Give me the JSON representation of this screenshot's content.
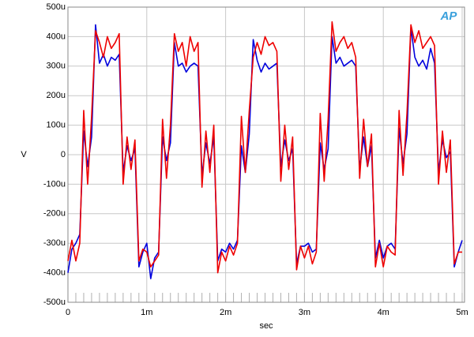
{
  "chart_data": {
    "type": "line",
    "logo": "AP",
    "x_label": "sec",
    "y_label": "V",
    "x": [
      0,
      5e-05,
      0.0001,
      0.00015,
      0.0002,
      0.00025,
      0.0003,
      0.00035,
      0.0004,
      0.00045,
      0.0005,
      0.00055,
      0.0006,
      0.00065,
      0.0007,
      0.00075,
      0.0008,
      0.00085,
      0.0009,
      0.00095,
      0.001,
      0.00105,
      0.0011,
      0.00115,
      0.0012,
      0.00125,
      0.0013,
      0.00135,
      0.0014,
      0.00145,
      0.0015,
      0.00155,
      0.0016,
      0.00165,
      0.0017,
      0.00175,
      0.0018,
      0.00185,
      0.0019,
      0.00195,
      0.002,
      0.00205,
      0.0021,
      0.00215,
      0.0022,
      0.00225,
      0.0023,
      0.00235,
      0.0024,
      0.00245,
      0.0025,
      0.00255,
      0.0026,
      0.00265,
      0.0027,
      0.00275,
      0.0028,
      0.00285,
      0.0029,
      0.00295,
      0.003,
      0.00305,
      0.0031,
      0.00315,
      0.0032,
      0.00325,
      0.0033,
      0.00335,
      0.0034,
      0.00345,
      0.0035,
      0.00355,
      0.0036,
      0.00365,
      0.0037,
      0.00375,
      0.0038,
      0.00385,
      0.0039,
      0.00395,
      0.004,
      0.00405,
      0.0041,
      0.00415,
      0.0042,
      0.00425,
      0.0043,
      0.00435,
      0.0044,
      0.00445,
      0.0045,
      0.00455,
      0.0046,
      0.00465,
      0.0047,
      0.00475,
      0.0048,
      0.00485,
      0.0049,
      0.00495,
      0.005
    ],
    "series": [
      {
        "color": "#0000dd",
        "values": [
          -0.0004,
          -0.00032,
          -0.0003,
          -0.00027,
          8e-05,
          -4e-05,
          6e-05,
          0.00044,
          0.00031,
          0.00034,
          0.0003,
          0.00033,
          0.00032,
          0.00034,
          -6e-05,
          3e-05,
          -2e-05,
          2e-05,
          -0.00038,
          -0.00033,
          -0.0003,
          -0.00042,
          -0.00035,
          -0.00033,
          6e-05,
          -2e-05,
          4e-05,
          0.00038,
          0.0003,
          0.00031,
          0.00028,
          0.0003,
          0.00031,
          0.0003,
          -7e-05,
          4e-05,
          -3e-05,
          6e-05,
          -0.00036,
          -0.00032,
          -0.00033,
          -0.0003,
          -0.00032,
          -0.00029,
          3e-05,
          -6e-05,
          7e-05,
          0.00039,
          0.00032,
          0.00028,
          0.00031,
          0.00029,
          0.0003,
          0.00031,
          -4e-05,
          5e-05,
          -2e-05,
          2e-05,
          -0.00037,
          -0.00031,
          -0.00031,
          -0.0003,
          -0.00033,
          -0.00032,
          4e-05,
          -5e-05,
          2e-05,
          0.0004,
          0.00031,
          0.00033,
          0.0003,
          0.00031,
          0.00032,
          0.0003,
          -5e-05,
          6e-05,
          -4e-05,
          3e-05,
          -0.00035,
          -0.00029,
          -0.00035,
          -0.00031,
          -0.0003,
          -0.00032,
          9e-05,
          -3e-05,
          7e-05,
          0.00043,
          0.00033,
          0.0003,
          0.00032,
          0.00029,
          0.00036,
          0.00031,
          -6e-05,
          5e-05,
          -1e-05,
          1e-05,
          -0.00038,
          -0.00033,
          -0.00029
        ]
      },
      {
        "color": "#ee0000",
        "values": [
          -0.00036,
          -0.00029,
          -0.00036,
          -0.0003,
          0.00015,
          -0.0001,
          0.00013,
          0.00042,
          0.00038,
          0.00033,
          0.0004,
          0.00036,
          0.00038,
          0.00041,
          -0.0001,
          6e-05,
          -5e-05,
          5e-05,
          -0.00036,
          -0.00032,
          -0.00033,
          -0.00038,
          -0.00036,
          -0.00034,
          0.00012,
          -8e-05,
          0.0001,
          0.00041,
          0.00035,
          0.00038,
          0.0003,
          0.0004,
          0.00035,
          0.00038,
          -0.00011,
          8e-05,
          -6e-05,
          0.0001,
          -0.0004,
          -0.00033,
          -0.00036,
          -0.00031,
          -0.00034,
          -0.0003,
          0.00013,
          -6e-05,
          0.00015,
          0.00033,
          0.00038,
          0.00034,
          0.0004,
          0.00037,
          0.00038,
          0.00035,
          -9e-05,
          0.0001,
          -5e-05,
          6e-05,
          -0.00039,
          -0.00031,
          -0.00035,
          -0.00031,
          -0.00037,
          -0.00033,
          0.00014,
          -9e-05,
          0.00012,
          0.00045,
          0.00035,
          0.00038,
          0.0004,
          0.00036,
          0.00038,
          0.00033,
          -8e-05,
          0.00012,
          -4e-05,
          7e-05,
          -0.00038,
          -0.0003,
          -0.00038,
          -0.00031,
          -0.00033,
          -0.00034,
          0.00015,
          -7e-05,
          0.00014,
          0.00044,
          0.00038,
          0.00042,
          0.00036,
          0.00038,
          0.0004,
          0.00037,
          -0.0001,
          8e-05,
          -6e-05,
          5e-05,
          -0.00037,
          -0.00033,
          -0.00033
        ]
      }
    ],
    "xlim": [
      0,
      0.00503
    ],
    "ylim": [
      -0.0005,
      0.0005
    ],
    "xticks": [
      0,
      {
        "value": 0.001,
        "label": "1m"
      },
      {
        "value": 0.002,
        "label": "2m"
      },
      {
        "value": 0.003,
        "label": "3m"
      },
      {
        "value": 0.004,
        "label": "4m"
      },
      {
        "value": 0.005,
        "label": "5m"
      }
    ],
    "yticks": [
      {
        "value": -0.0005,
        "label": "-500u"
      },
      {
        "value": -0.0004,
        "label": "-400u"
      },
      {
        "value": -0.0003,
        "label": "-300u"
      },
      {
        "value": -0.0002,
        "label": "-200u"
      },
      {
        "value": -0.0001,
        "label": "-100u"
      },
      0,
      {
        "value": 0.0001,
        "label": "100u"
      },
      {
        "value": 0.0002,
        "label": "200u"
      },
      {
        "value": 0.0003,
        "label": "300u"
      },
      {
        "value": 0.0004,
        "label": "400u"
      },
      {
        "value": 0.0005,
        "label": "500u"
      }
    ],
    "grid": true
  }
}
